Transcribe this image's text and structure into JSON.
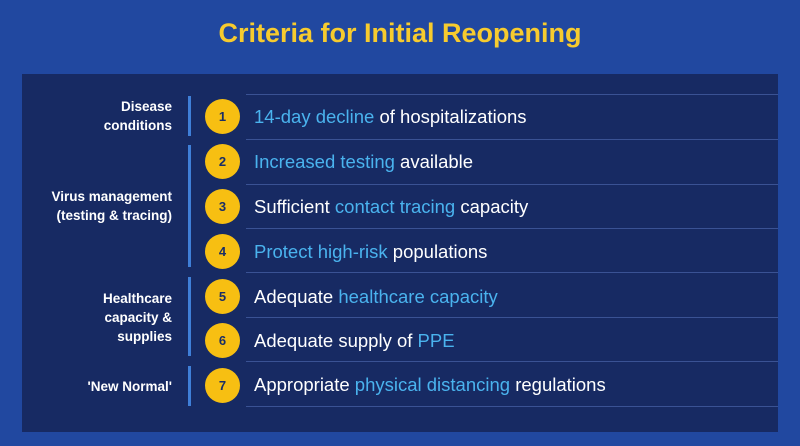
{
  "title": "Criteria for Initial Reopening",
  "categories": [
    {
      "lines": [
        "Disease",
        "conditions"
      ]
    },
    {
      "lines": [
        "Virus management",
        "(testing & tracing)"
      ]
    },
    {
      "lines": [
        "Healthcare",
        "capacity &",
        "supplies"
      ]
    },
    {
      "lines": [
        "'New Normal'"
      ]
    }
  ],
  "criteria": [
    {
      "number": "1",
      "parts": [
        {
          "text": "14-day decline",
          "highlight": true
        },
        {
          "text": " of hospitalizations",
          "highlight": false
        }
      ]
    },
    {
      "number": "2",
      "parts": [
        {
          "text": "Increased testing",
          "highlight": true
        },
        {
          "text": " available",
          "highlight": false
        }
      ]
    },
    {
      "number": "3",
      "parts": [
        {
          "text": "Sufficient ",
          "highlight": false
        },
        {
          "text": "contact tracing",
          "highlight": true
        },
        {
          "text": " capacity",
          "highlight": false
        }
      ]
    },
    {
      "number": "4",
      "parts": [
        {
          "text": "Protect high-risk",
          "highlight": true
        },
        {
          "text": " populations",
          "highlight": false
        }
      ]
    },
    {
      "number": "5",
      "parts": [
        {
          "text": "Adequate ",
          "highlight": false
        },
        {
          "text": "healthcare capacity",
          "highlight": true
        }
      ]
    },
    {
      "number": "6",
      "parts": [
        {
          "text": "Adequate supply of ",
          "highlight": false
        },
        {
          "text": "PPE",
          "highlight": true
        }
      ]
    },
    {
      "number": "7",
      "parts": [
        {
          "text": "Appropriate ",
          "highlight": false
        },
        {
          "text": "physical distancing",
          "highlight": true
        },
        {
          "text": " regulations",
          "highlight": false
        }
      ]
    }
  ],
  "colors": {
    "background": "#2148a0",
    "panel": "#172a63",
    "title": "#f7cb2e",
    "badge": "#f7bf12",
    "highlight": "#4ab3ee",
    "accent_bar": "#3f7fd8"
  }
}
